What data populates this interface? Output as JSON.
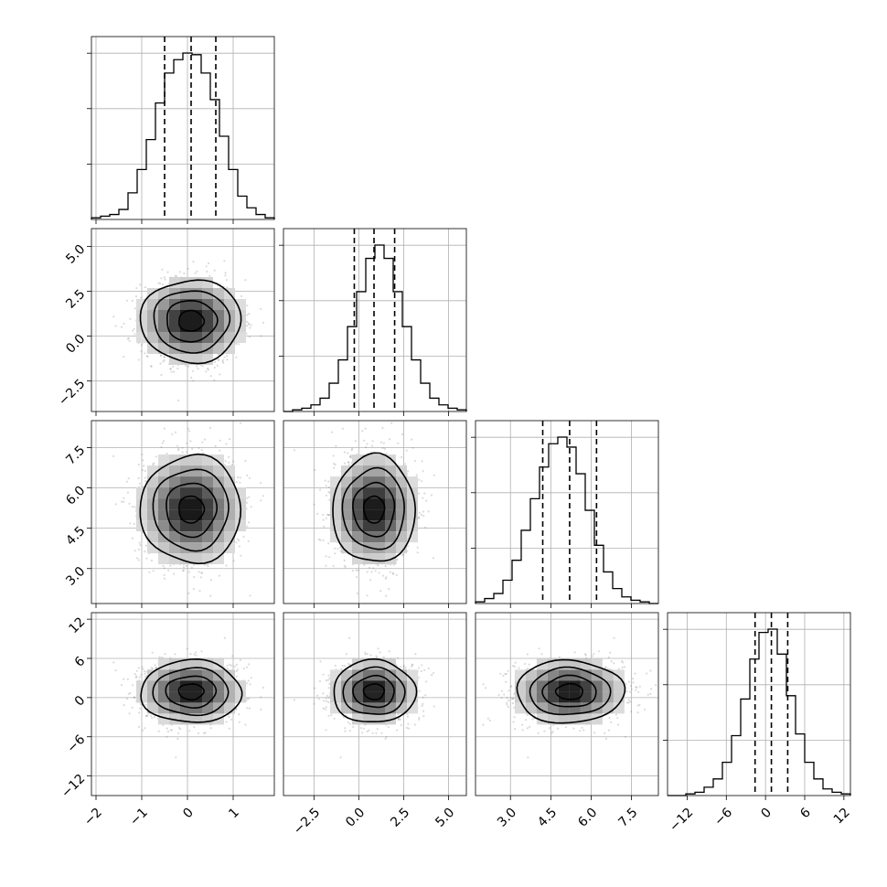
{
  "chart_data": {
    "type": "corner",
    "parameters": 4,
    "distributions": [
      {
        "mean": 0.08,
        "sd": 0.55,
        "range": [
          -2.1,
          1.9
        ],
        "ticks": [
          -2,
          -1,
          0,
          1
        ],
        "tick_labels": [
          "−2",
          "−1",
          "0",
          "1"
        ],
        "quantiles": [
          -0.5,
          0.08,
          0.62
        ]
      },
      {
        "mean": 0.85,
        "sd": 1.15,
        "range": [
          -4.2,
          6.0
        ],
        "ticks": [
          -2.5,
          0.0,
          2.5,
          5.0
        ],
        "tick_labels": [
          "−2.5",
          "0.0",
          "2.5",
          "5.0"
        ],
        "quantiles": [
          -0.25,
          0.85,
          2.0
        ]
      },
      {
        "mean": 5.2,
        "sd": 1.0,
        "range": [
          1.7,
          8.5
        ],
        "ticks": [
          3.0,
          4.5,
          6.0,
          7.5
        ],
        "tick_labels": [
          "3.0",
          "4.5",
          "6.0",
          "7.5"
        ],
        "quantiles": [
          4.2,
          5.2,
          6.2
        ]
      },
      {
        "mean": 0.9,
        "sd": 2.4,
        "range": [
          -15.0,
          13.0
        ],
        "ticks": [
          -12,
          -6,
          0,
          6,
          12
        ],
        "tick_labels": [
          "−12",
          "−6",
          "0",
          "6",
          "12"
        ],
        "quantiles": [
          -1.6,
          0.9,
          3.4
        ]
      }
    ],
    "histogram_bins": 20,
    "histogram_relative_counts": [
      [
        0.01,
        0.02,
        0.03,
        0.06,
        0.16,
        0.3,
        0.48,
        0.7,
        0.88,
        0.96,
        1.0,
        0.99,
        0.88,
        0.72,
        0.5,
        0.3,
        0.14,
        0.07,
        0.03,
        0.01
      ],
      [
        0.0,
        0.01,
        0.02,
        0.04,
        0.08,
        0.17,
        0.31,
        0.51,
        0.72,
        0.92,
        1.0,
        0.92,
        0.72,
        0.51,
        0.31,
        0.17,
        0.08,
        0.04,
        0.02,
        0.01
      ],
      [
        0.01,
        0.03,
        0.06,
        0.14,
        0.26,
        0.44,
        0.63,
        0.82,
        0.96,
        1.0,
        0.94,
        0.78,
        0.56,
        0.35,
        0.19,
        0.09,
        0.04,
        0.02,
        0.01,
        0.0
      ],
      [
        0.0,
        0.0,
        0.01,
        0.02,
        0.05,
        0.1,
        0.2,
        0.36,
        0.58,
        0.82,
        0.98,
        1.0,
        0.85,
        0.6,
        0.37,
        0.2,
        0.1,
        0.04,
        0.02,
        0.01
      ]
    ],
    "contour_levels_sigma": [
      0.5,
      1.0,
      1.5,
      2.0
    ],
    "grid": true,
    "title": "",
    "axis_labels": []
  }
}
